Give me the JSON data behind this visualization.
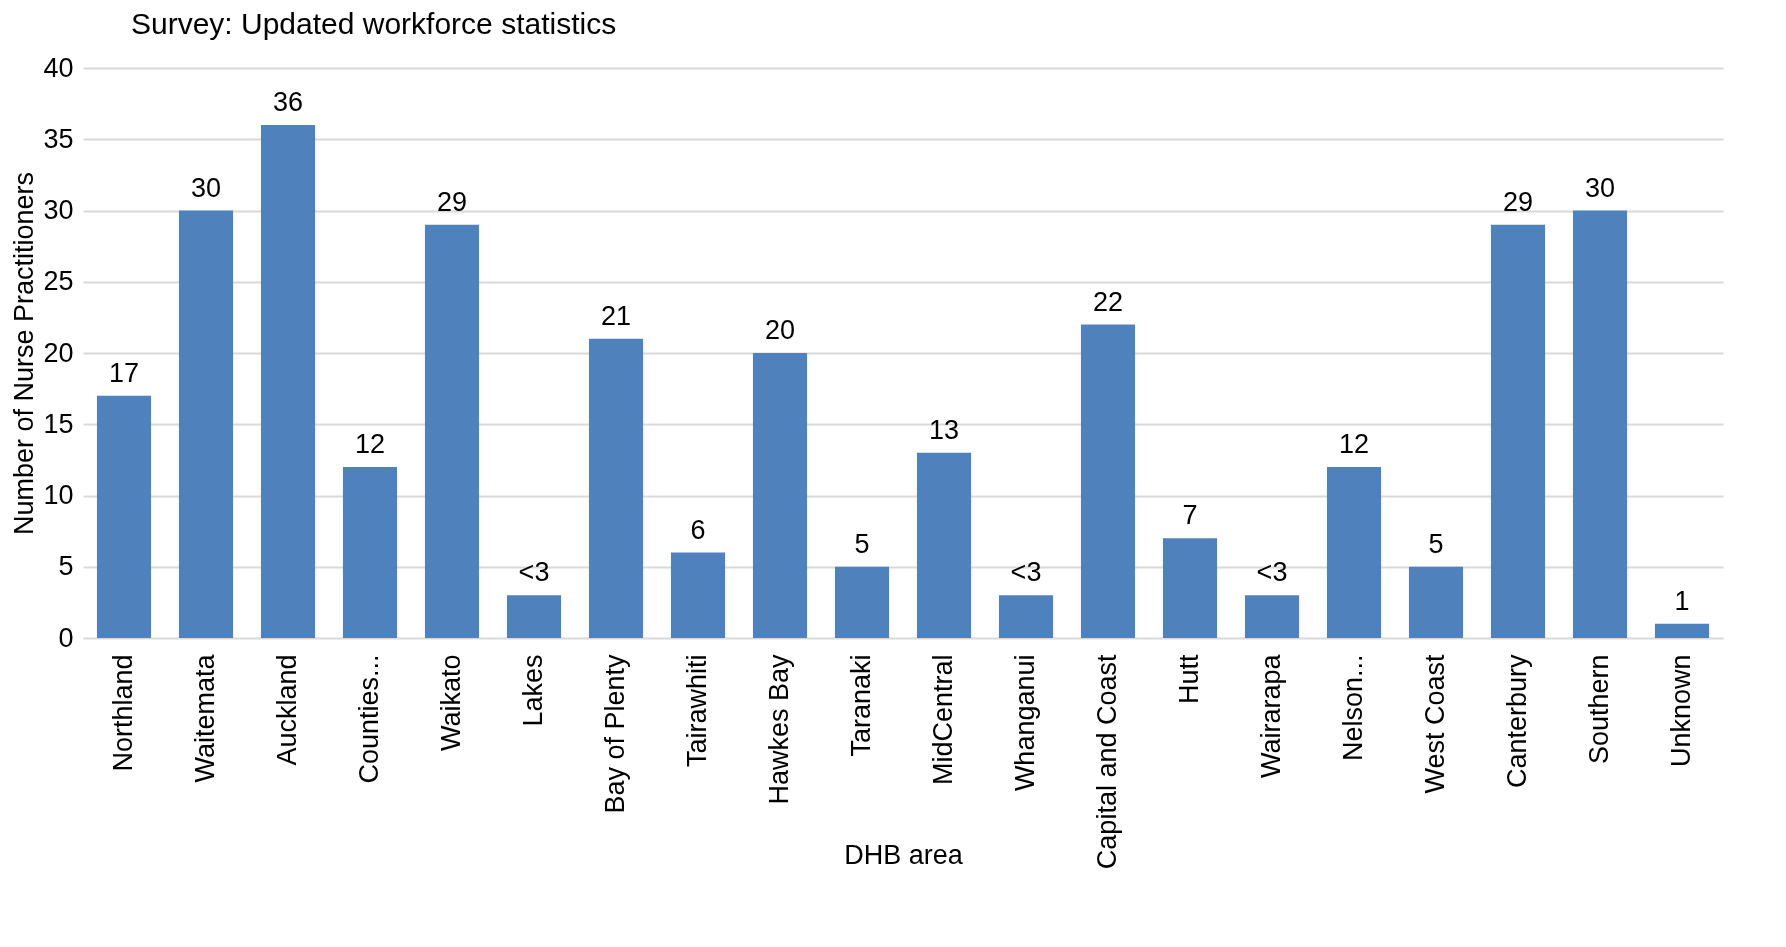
{
  "chart_data": {
    "type": "bar",
    "title": "Survey: Updated workforce statistics",
    "xlabel": "DHB area",
    "ylabel": "Number of Nurse Practitioners",
    "categories": [
      "Northland",
      "Waitemata",
      "Auckland",
      "Counties...",
      "Waikato",
      "Lakes",
      "Bay of Plenty",
      "Tairawhiti",
      "Hawkes Bay",
      "Taranaki",
      "MidCentral",
      "Whanganui",
      "Capital and Coast",
      "Hutt",
      "Wairarapa",
      "Nelson...",
      "West Coast",
      "Canterbury",
      "Southern",
      "Unknown"
    ],
    "values": [
      17,
      30,
      36,
      12,
      29,
      3,
      21,
      6,
      20,
      5,
      13,
      3,
      22,
      7,
      3,
      12,
      5,
      29,
      30,
      1
    ],
    "value_labels": [
      "17",
      "30",
      "36",
      "12",
      "29",
      "<3",
      "21",
      "6",
      "20",
      "5",
      "13",
      "<3",
      "22",
      "7",
      "<3",
      "12",
      "5",
      "29",
      "30",
      "1"
    ],
    "color": "#4f81bd",
    "ylim": [
      0,
      40
    ],
    "yticks": [
      0,
      5,
      10,
      15,
      20,
      25,
      30,
      35,
      40
    ],
    "grid": "y"
  }
}
